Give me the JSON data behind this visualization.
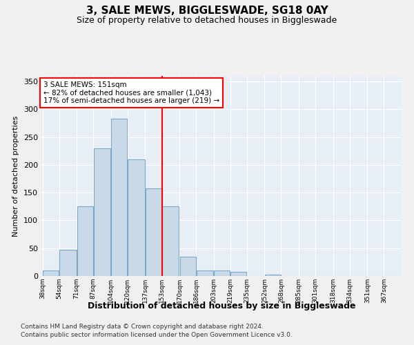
{
  "title": "3, SALE MEWS, BIGGLESWADE, SG18 0AY",
  "subtitle": "Size of property relative to detached houses in Biggleswade",
  "xlabel": "Distribution of detached houses by size in Biggleswade",
  "ylabel": "Number of detached properties",
  "bin_labels": [
    "38sqm",
    "54sqm",
    "71sqm",
    "87sqm",
    "104sqm",
    "120sqm",
    "137sqm",
    "153sqm",
    "170sqm",
    "186sqm",
    "203sqm",
    "219sqm",
    "235sqm",
    "252sqm",
    "268sqm",
    "285sqm",
    "301sqm",
    "318sqm",
    "334sqm",
    "351sqm",
    "367sqm"
  ],
  "bar_values": [
    10,
    47,
    126,
    230,
    283,
    210,
    158,
    125,
    35,
    10,
    10,
    8,
    0,
    3,
    0,
    0,
    0,
    0,
    0,
    0,
    0
  ],
  "bar_color": "#c9d9e8",
  "bar_edgecolor": "#7aaac8",
  "background_color": "#e8eef5",
  "fig_background": "#f0f0f0",
  "grid_color": "#ffffff",
  "vline_x_index": 7,
  "vline_label": "3 SALE MEWS: 151sqm",
  "annotation_line1": "← 82% of detached houses are smaller (1,043)",
  "annotation_line2": "17% of semi-detached houses are larger (219) →",
  "ylim": [
    0,
    360
  ],
  "yticks": [
    0,
    50,
    100,
    150,
    200,
    250,
    300,
    350
  ],
  "footnote1": "Contains HM Land Registry data © Crown copyright and database right 2024.",
  "footnote2": "Contains public sector information licensed under the Open Government Licence v3.0.",
  "bin_edges": [
    38,
    54,
    71,
    87,
    104,
    120,
    137,
    153,
    170,
    186,
    203,
    219,
    235,
    252,
    268,
    285,
    301,
    318,
    334,
    351,
    367,
    383
  ]
}
